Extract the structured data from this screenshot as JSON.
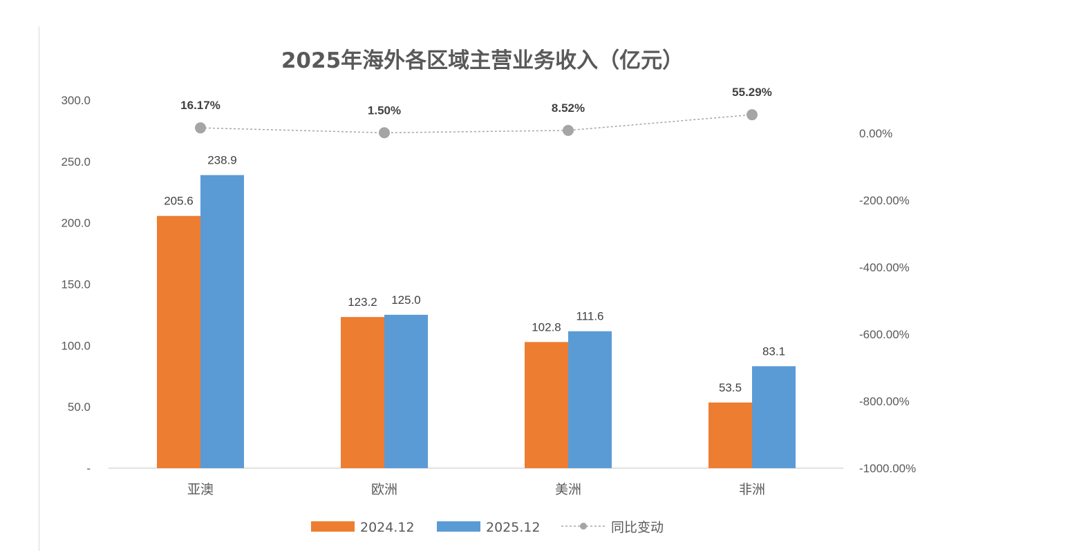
{
  "chart_data": {
    "type": "bar",
    "title": "2025年海外各区域主营业务收入（亿元）",
    "categories": [
      "亚澳",
      "欧洲",
      "美洲",
      "非洲"
    ],
    "series": [
      {
        "name": "2024.12",
        "type": "bar",
        "axis": "left",
        "color": "#ED7D31",
        "values": [
          205.6,
          123.2,
          102.8,
          53.5
        ],
        "labels": [
          "205.6",
          "123.2",
          "102.8",
          "53.5"
        ]
      },
      {
        "name": "2025.12",
        "type": "bar",
        "axis": "left",
        "color": "#5B9BD5",
        "values": [
          238.9,
          125.0,
          111.6,
          83.1
        ],
        "labels": [
          "238.9",
          "125.0",
          "111.6",
          "83.1"
        ]
      },
      {
        "name": "同比变动",
        "type": "line",
        "axis": "right",
        "style": "dashed-with-markers",
        "color": "#A5A5A5",
        "values": [
          16.17,
          1.5,
          8.52,
          55.29
        ],
        "labels": [
          "16.17%",
          "1.50%",
          "8.52%",
          "55.29%"
        ]
      }
    ],
    "left_axis": {
      "ylim": [
        0,
        300
      ],
      "ticks": [
        0,
        50,
        100,
        150,
        200,
        250,
        300
      ],
      "tick_labels": [
        "-",
        "50.0",
        "100.0",
        "150.0",
        "200.0",
        "250.0",
        "300.0"
      ]
    },
    "right_axis": {
      "ylim": [
        -1000,
        0
      ],
      "ticks": [
        0,
        -200,
        -400,
        -600,
        -800,
        -1000
      ],
      "tick_labels": [
        "0.00%",
        "-200.00%",
        "-400.00%",
        "-600.00%",
        "-800.00%",
        "-1000.00%"
      ]
    },
    "grid": false,
    "legend": "bottom"
  }
}
